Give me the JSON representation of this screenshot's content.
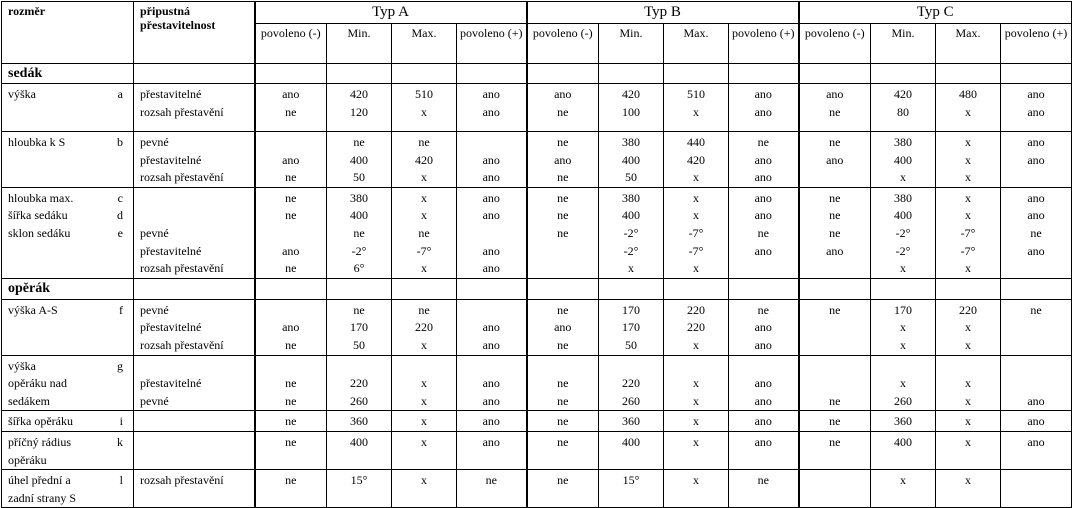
{
  "header": {
    "dimension": "rozměr",
    "adjustability": "připustná přestavitelnost",
    "types": [
      "Typ A",
      "Typ B",
      "Typ C"
    ],
    "subcolumns": [
      "povoleno (-)",
      "Min.",
      "Max.",
      "povoleno (+)"
    ]
  },
  "sections": [
    {
      "title": "sedák",
      "groups": [
        {
          "name": [
            "výška"
          ],
          "letters": [
            "a"
          ],
          "adjust": [
            "přestavitelné",
            "rozsah přestavění"
          ],
          "values": [
            [
              "ano",
              420,
              510,
              "ano",
              "ano",
              420,
              510,
              "ano",
              "ano",
              420,
              480,
              "ano"
            ],
            [
              "ne",
              120,
              "x",
              "ano",
              "ne",
              100,
              "x",
              "ano",
              "ne",
              80,
              "x",
              "ano"
            ]
          ]
        },
        {
          "name": [
            "hloubka k S"
          ],
          "letters": [
            "b"
          ],
          "adjust": [
            "pevné",
            "přestavitelné",
            "rozsah přestavění"
          ],
          "values": [
            [
              null,
              "ne",
              "ne",
              null,
              "ne",
              380,
              440,
              "ne",
              "ne",
              380,
              "x",
              "ano"
            ],
            [
              "ano",
              400,
              420,
              "ano",
              "ano",
              400,
              420,
              "ano",
              "ano",
              400,
              "x",
              "ano"
            ],
            [
              "ne",
              50,
              "x",
              "ano",
              "ne",
              50,
              "x",
              "ano",
              null,
              "x",
              "x",
              null
            ]
          ]
        },
        {
          "name": [
            "hloubka max.",
            "šířka sedáku",
            "sklon sedáku"
          ],
          "letters": [
            "c",
            "d",
            "e"
          ],
          "adjust": [
            null,
            null,
            "pevné",
            "přestavitelné",
            "rozsah přestavění"
          ],
          "values": [
            [
              "ne",
              380,
              "x",
              "ano",
              "ne",
              380,
              "x",
              "ano",
              "ne",
              380,
              "x",
              "ano"
            ],
            [
              "ne",
              400,
              "x",
              "ano",
              "ne",
              400,
              "x",
              "ano",
              "ne",
              400,
              "x",
              "ano"
            ],
            [
              null,
              "ne",
              "ne",
              null,
              "ne",
              "-2°",
              "-7°",
              "ne",
              "ne",
              "-2°",
              "-7°",
              "ne"
            ],
            [
              "ano",
              "-2°",
              "-7°",
              "ano",
              null,
              "-2°",
              "-7°",
              "ano",
              "ano",
              "-2°",
              "-7°",
              "ano"
            ],
            [
              "ne",
              "6°",
              "x",
              "ano",
              null,
              "x",
              "x",
              null,
              null,
              "x",
              "x",
              null
            ]
          ]
        }
      ]
    },
    {
      "title": "opěrák",
      "groups": [
        {
          "name": [
            "výška A-S"
          ],
          "letters": [
            "f"
          ],
          "adjust": [
            "pevné",
            "přestavitelné",
            "rozsah přestavění"
          ],
          "values": [
            [
              null,
              "ne",
              "ne",
              null,
              "ne",
              170,
              220,
              "ne",
              "ne",
              170,
              220,
              "ne"
            ],
            [
              "ano",
              170,
              220,
              "ano",
              "ano",
              170,
              220,
              "ano",
              null,
              "x",
              "x",
              null
            ],
            [
              "ne",
              50,
              "x",
              "ano",
              "ne",
              50,
              "x",
              "ano",
              null,
              "x",
              "x",
              null
            ]
          ]
        },
        {
          "name": [
            "výška",
            "opěráku nad",
            "sedákem"
          ],
          "letters": [
            "g"
          ],
          "adjust": [
            null,
            "přestavitelné",
            "pevné"
          ],
          "values": [
            [
              null,
              null,
              null,
              null,
              null,
              null,
              null,
              null,
              null,
              null,
              null,
              null
            ],
            [
              "ne",
              220,
              "x",
              "ano",
              "ne",
              220,
              "x",
              "ano",
              null,
              "x",
              "x",
              null
            ],
            [
              "ne",
              260,
              "x",
              "ano",
              "ne",
              260,
              "x",
              "ano",
              "ne",
              260,
              "x",
              "ano"
            ]
          ]
        },
        {
          "name": [
            "šířka opěráku"
          ],
          "letters": [
            "i"
          ],
          "adjust": [
            null
          ],
          "values": [
            [
              "ne",
              360,
              "x",
              "ano",
              "ne",
              360,
              "x",
              "ano",
              "ne",
              360,
              "x",
              "ano"
            ]
          ]
        },
        {
          "name": [
            "příčný rádius",
            "opěráku"
          ],
          "letters": [
            "k"
          ],
          "adjust": [
            null
          ],
          "values": [
            [
              "ne",
              400,
              "x",
              "ano",
              "ne",
              400,
              "x",
              "ano",
              "ne",
              400,
              "x",
              "ano"
            ]
          ]
        },
        {
          "name": [
            "úhel přední a",
            "zadní strany S"
          ],
          "letters": [
            "l"
          ],
          "adjust": [
            "rozsah přestavění"
          ],
          "values": [
            [
              "ne",
              "15°",
              "x",
              "ne",
              "ne",
              "15°",
              "x",
              "ne",
              null,
              "x",
              "x",
              null
            ]
          ]
        }
      ]
    }
  ]
}
